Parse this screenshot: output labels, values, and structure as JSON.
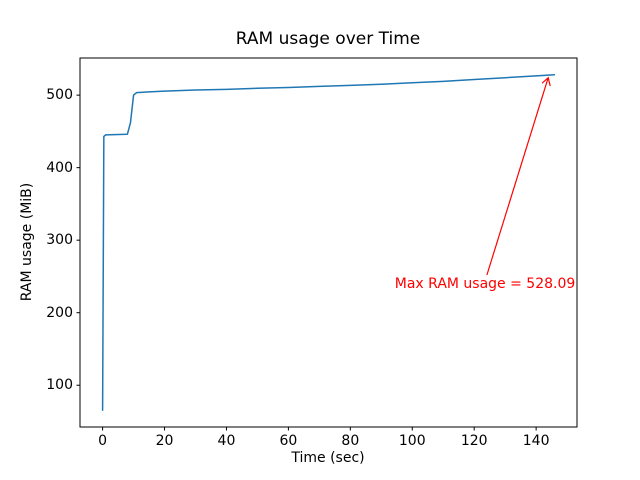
{
  "chart_data": {
    "type": "line",
    "title": "RAM usage over Time",
    "xlabel": "Time (sec)",
    "ylabel": "RAM usage (MiB)",
    "xlim": [
      -7.3,
      153.2
    ],
    "ylim": [
      42.4,
      551.2
    ],
    "x_ticks": [
      0,
      20,
      40,
      60,
      80,
      100,
      120,
      140
    ],
    "y_ticks": [
      100,
      200,
      300,
      400,
      500
    ],
    "grid": false,
    "legend": null,
    "axis_color": "#000000",
    "series": [
      {
        "name": "RAM usage",
        "color": "#1f77b4",
        "points": [
          [
            0,
            65.5
          ],
          [
            0.4,
            443
          ],
          [
            1,
            445.2
          ],
          [
            8,
            446
          ],
          [
            9,
            462
          ],
          [
            10,
            500
          ],
          [
            11,
            503.5
          ],
          [
            15,
            504.5
          ],
          [
            20,
            505.5
          ],
          [
            30,
            507
          ],
          [
            40,
            508
          ],
          [
            50,
            509.5
          ],
          [
            60,
            510.5
          ],
          [
            70,
            512
          ],
          [
            80,
            513.5
          ],
          [
            90,
            515
          ],
          [
            100,
            517
          ],
          [
            110,
            519
          ],
          [
            120,
            521.5
          ],
          [
            130,
            524
          ],
          [
            140,
            526.5
          ],
          [
            145.9,
            528.09
          ]
        ]
      }
    ],
    "max_value": 528.09,
    "annotation": {
      "text": "Max RAM usage = 528.09",
      "color": "#ff0000",
      "text_x": 123.5,
      "text_y": 239,
      "arrow_start": [
        124.1,
        252
      ],
      "arrow_end": [
        143.9,
        524
      ]
    }
  }
}
